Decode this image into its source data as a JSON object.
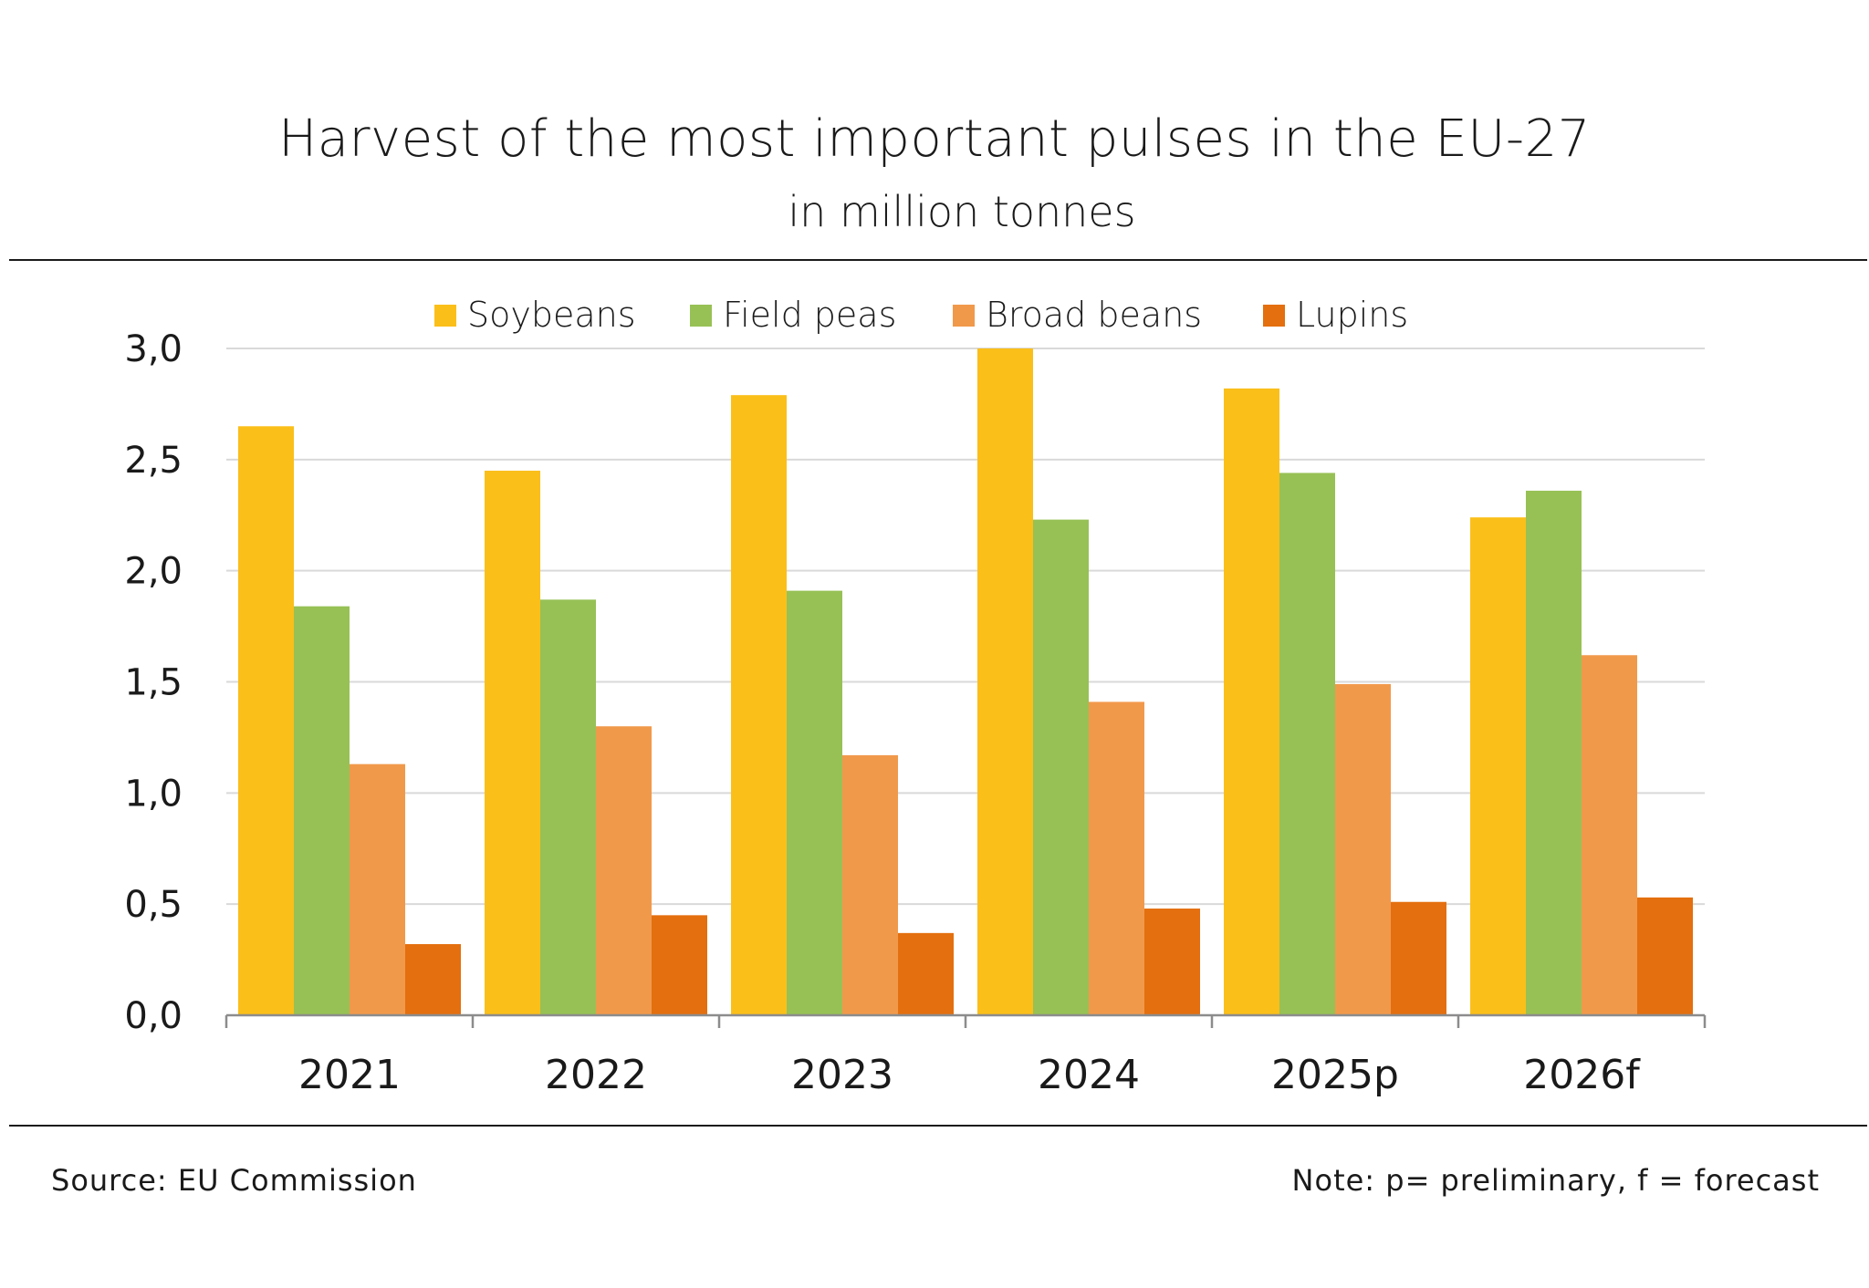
{
  "chart_data": {
    "type": "bar",
    "title": "Harvest of the most important pulses in the EU-27",
    "subtitle": "in million tonnes",
    "categories": [
      "2021",
      "2022",
      "2023",
      "2024",
      "2025p",
      "2026f"
    ],
    "series": [
      {
        "name": "Soybeans",
        "color": "#FBBF1A",
        "values": [
          2.65,
          2.45,
          2.79,
          3.0,
          2.82,
          2.24
        ]
      },
      {
        "name": "Field peas",
        "color": "#97C155",
        "values": [
          1.84,
          1.87,
          1.91,
          2.23,
          2.44,
          2.36
        ]
      },
      {
        "name": "Broad beans",
        "color": "#F1994B",
        "values": [
          1.13,
          1.3,
          1.17,
          1.41,
          1.49,
          1.62
        ]
      },
      {
        "name": "Lupins",
        "color": "#E46F0E",
        "values": [
          0.32,
          0.45,
          0.37,
          0.48,
          0.51,
          0.53
        ]
      }
    ],
    "ylim": [
      0,
      3.0
    ],
    "yticks": [
      "0,0",
      "0,5",
      "1,0",
      "1,5",
      "2,0",
      "2,5",
      "3,0"
    ],
    "ytick_values": [
      0,
      0.5,
      1.0,
      1.5,
      2.0,
      2.5,
      3.0
    ],
    "grid": true,
    "legend_position": "top"
  },
  "footer": {
    "source": "Source: EU Commission",
    "note": "Note: p= preliminary, f = forecast"
  },
  "colors": {
    "grid": "#D9D9D9",
    "axis": "#8C8C8C",
    "text": "#1a1a1a"
  }
}
